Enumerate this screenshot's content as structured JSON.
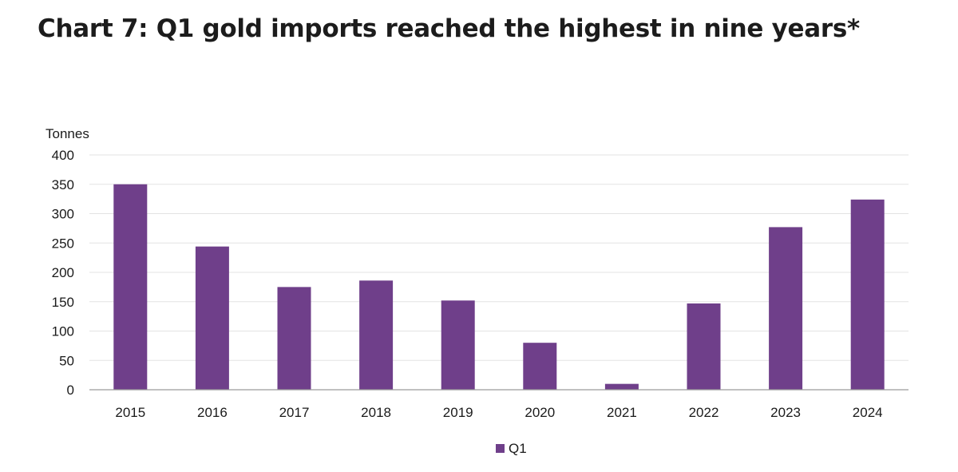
{
  "title": "Chart 7: Q1 gold imports reached the highest in nine years*",
  "colors": {
    "bar": "#6f3f8a",
    "grid": "#e3e3e3",
    "axis": "#9a9a9a"
  },
  "chart_data": {
    "type": "bar",
    "title": "Chart 7: Q1 gold imports reached the highest in nine years*",
    "ylabel": "Tonnes",
    "xlabel": "",
    "ylim": [
      0,
      400
    ],
    "yticks": [
      0,
      50,
      100,
      150,
      200,
      250,
      300,
      350,
      400
    ],
    "grid": true,
    "legend_position": "bottom",
    "categories": [
      "2015",
      "2016",
      "2017",
      "2018",
      "2019",
      "2020",
      "2021",
      "2022",
      "2023",
      "2024"
    ],
    "series": [
      {
        "name": "Q1",
        "values": [
          350,
          244,
          175,
          186,
          152,
          80,
          10,
          147,
          277,
          324
        ]
      }
    ]
  }
}
